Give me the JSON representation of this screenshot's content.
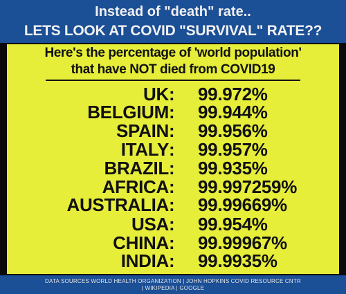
{
  "header": {
    "line1": "Instead of \"death\" rate..",
    "line2": "LETS LOOK AT COVID \"SURVIVAL\" RATE??"
  },
  "subtitle": {
    "line1": "Here's the percentage of 'world population'",
    "line2": "that have NOT died from COVID19"
  },
  "rows": [
    {
      "country": "UK",
      "value": "99.972%"
    },
    {
      "country": "BELGIUM",
      "value": "99.944%"
    },
    {
      "country": "SPAIN",
      "value": "99.956%"
    },
    {
      "country": "ITALY",
      "value": "99.957%"
    },
    {
      "country": "BRAZIL",
      "value": "99.935%"
    },
    {
      "country": "AFRICA",
      "value": "99.997259%"
    },
    {
      "country": "AUSTRALIA",
      "value": "99.99669%"
    },
    {
      "country": "USA",
      "value": "99.954%"
    },
    {
      "country": "CHINA",
      "value": "99.99967%"
    },
    {
      "country": "INDIA",
      "value": "99.9935%"
    }
  ],
  "colon": ":",
  "footer": {
    "line1": "DATA SOURCES WORLD HEALTH ORGANIZATION | JOHN HOPKINS COVID RESOURCE CNTR",
    "line2": "| WIKIPEDIA | GOOGLE"
  },
  "colors": {
    "header_bg": "#1b4f96",
    "panel_bg": "#e7ee3a",
    "text": "#111111"
  }
}
